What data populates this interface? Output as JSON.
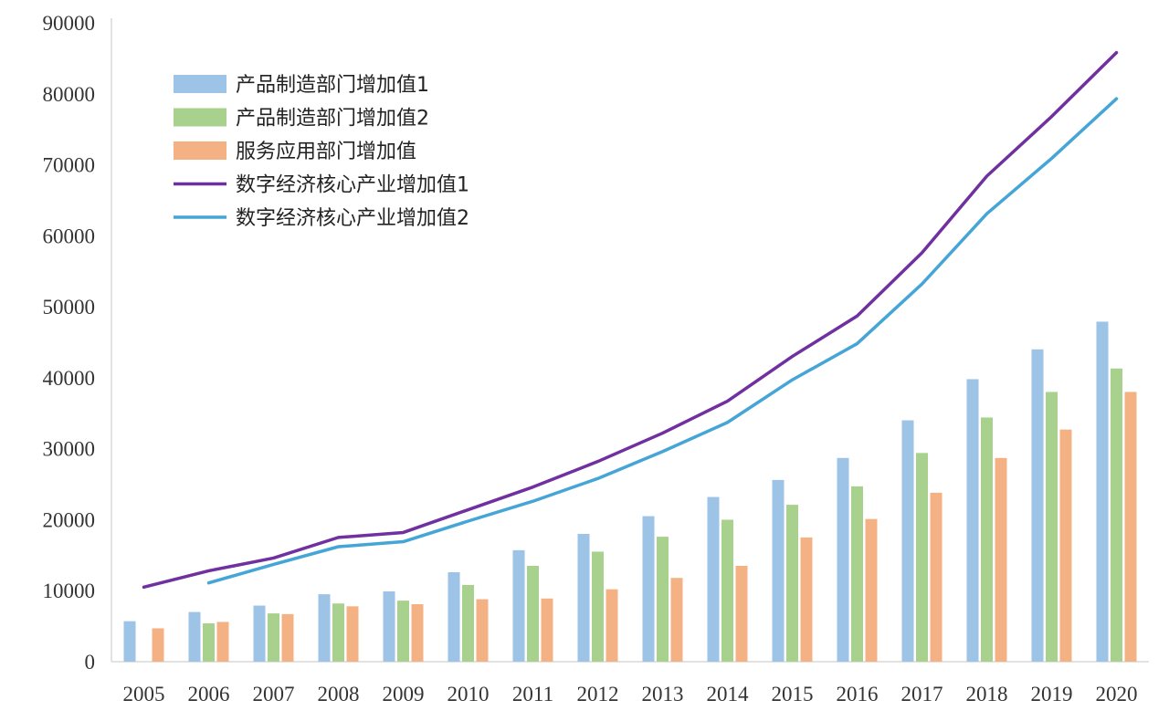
{
  "chart_data": {
    "type": "bar",
    "categories": [
      "2005",
      "2006",
      "2007",
      "2008",
      "2009",
      "2010",
      "2011",
      "2012",
      "2013",
      "2014",
      "2015",
      "2016",
      "2017",
      "2018",
      "2019",
      "2020"
    ],
    "ylim": [
      0,
      90000
    ],
    "y_ticks": [
      0,
      10000,
      20000,
      30000,
      40000,
      50000,
      60000,
      70000,
      80000,
      90000
    ],
    "grid": false,
    "legend_position": "top-left",
    "series": [
      {
        "name": "产品制造部门增加值1",
        "kind": "bar",
        "color": "#9dc3e6",
        "values": [
          5700,
          7000,
          7900,
          9500,
          9900,
          12600,
          15700,
          18000,
          20500,
          23200,
          25600,
          28700,
          34000,
          39800,
          44000,
          47900
        ]
      },
      {
        "name": "产品制造部门增加值2",
        "kind": "bar",
        "color": "#a9d18e",
        "values": [
          null,
          5400,
          6800,
          8200,
          8600,
          10800,
          13500,
          15500,
          17600,
          20000,
          22100,
          24700,
          29400,
          34400,
          38000,
          41300
        ]
      },
      {
        "name": "服务应用部门增加值",
        "kind": "bar",
        "color": "#f4b183",
        "values": [
          4700,
          5600,
          6700,
          7800,
          8100,
          8800,
          8900,
          10200,
          11800,
          13500,
          17500,
          20100,
          23800,
          28700,
          32700,
          38000
        ]
      },
      {
        "name": "数字经济核心产业增加值1",
        "kind": "line",
        "color": "#7030a0",
        "values": [
          10500,
          12800,
          14600,
          17500,
          18200,
          21400,
          24600,
          28200,
          32200,
          36700,
          43000,
          48700,
          57600,
          68400,
          76800,
          85800
        ]
      },
      {
        "name": "数字经济核心产业增加值2",
        "kind": "line",
        "color": "#45a5d6",
        "values": [
          null,
          11100,
          13700,
          16200,
          16900,
          19800,
          22600,
          25800,
          29600,
          33700,
          39700,
          44800,
          53200,
          63100,
          70900,
          79300
        ]
      }
    ]
  }
}
